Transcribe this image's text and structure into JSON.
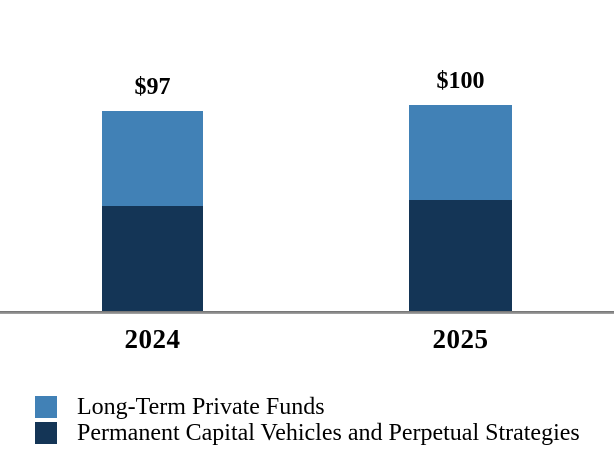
{
  "chart_data": {
    "type": "bar",
    "stacked": true,
    "title": "",
    "xlabel": "",
    "ylabel": "",
    "grid": false,
    "background": "#FFFFFF",
    "axis_line_color": "#7F7F7F",
    "legend_position": "bottom-left",
    "categories": [
      "2024",
      "2025"
    ],
    "series": [
      {
        "name": "Long-Term Private Funds",
        "color": "#4181B6",
        "values": [
          46,
          46
        ]
      },
      {
        "name": "Permanent Capital Vehicles and Perpetual Strategies",
        "color": "#143556",
        "values": [
          51,
          54
        ]
      }
    ],
    "totals": [
      97,
      100
    ],
    "total_labels": [
      "$97",
      "$100"
    ]
  },
  "legend": {
    "items": [
      {
        "label": "Long-Term Private Funds",
        "color": "#4181B6"
      },
      {
        "label": "Permanent Capital Vehicles and Perpetual Strategies",
        "color": "#143556"
      }
    ]
  }
}
